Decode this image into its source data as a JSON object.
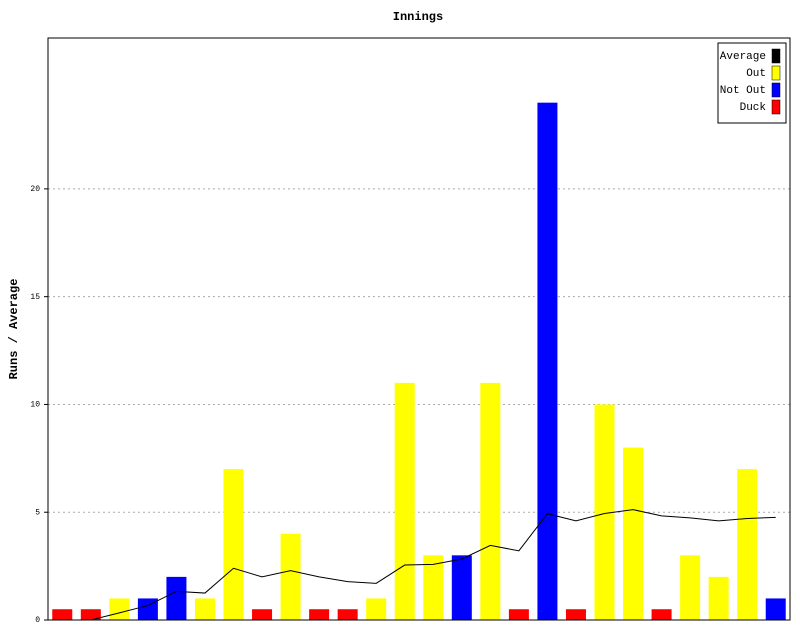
{
  "chart_data": {
    "type": "bar",
    "title": "Innings",
    "y_label": "Runs / Average",
    "ylim": [
      0,
      27
    ],
    "yticks": [
      0,
      5,
      10,
      15,
      20
    ],
    "grid": true,
    "legend": "top-right",
    "series": [
      {
        "name": "Average",
        "type": "line",
        "color": "#000000",
        "values": [
          0,
          0,
          0.33,
          0.67,
          1.33,
          1.25,
          2.4,
          2.0,
          2.29,
          2.0,
          1.78,
          1.7,
          2.55,
          2.58,
          2.83,
          3.46,
          3.21,
          4.93,
          4.6,
          4.94,
          5.12,
          4.83,
          4.74,
          4.6,
          4.71,
          4.76
        ]
      },
      {
        "name": "Out",
        "type": "bar",
        "color": "#ffff00",
        "values": [
          null,
          null,
          1,
          null,
          null,
          1,
          7,
          null,
          4,
          null,
          null,
          1,
          11,
          3,
          null,
          11,
          null,
          null,
          null,
          10,
          8,
          null,
          3,
          2,
          7,
          null
        ]
      },
      {
        "name": "Not Out",
        "type": "bar",
        "color": "#0000ff",
        "values": [
          null,
          null,
          null,
          1,
          2,
          null,
          null,
          null,
          null,
          null,
          null,
          null,
          null,
          null,
          3,
          null,
          null,
          24,
          null,
          null,
          null,
          null,
          null,
          null,
          null,
          1
        ]
      },
      {
        "name": "Duck",
        "type": "bar",
        "color": "#ff0000",
        "values": [
          0.5,
          0.5,
          null,
          null,
          null,
          null,
          null,
          0.5,
          null,
          0.5,
          0.5,
          null,
          null,
          null,
          null,
          null,
          0.5,
          null,
          0.5,
          null,
          null,
          0.5,
          null,
          null,
          null,
          null
        ]
      }
    ]
  }
}
